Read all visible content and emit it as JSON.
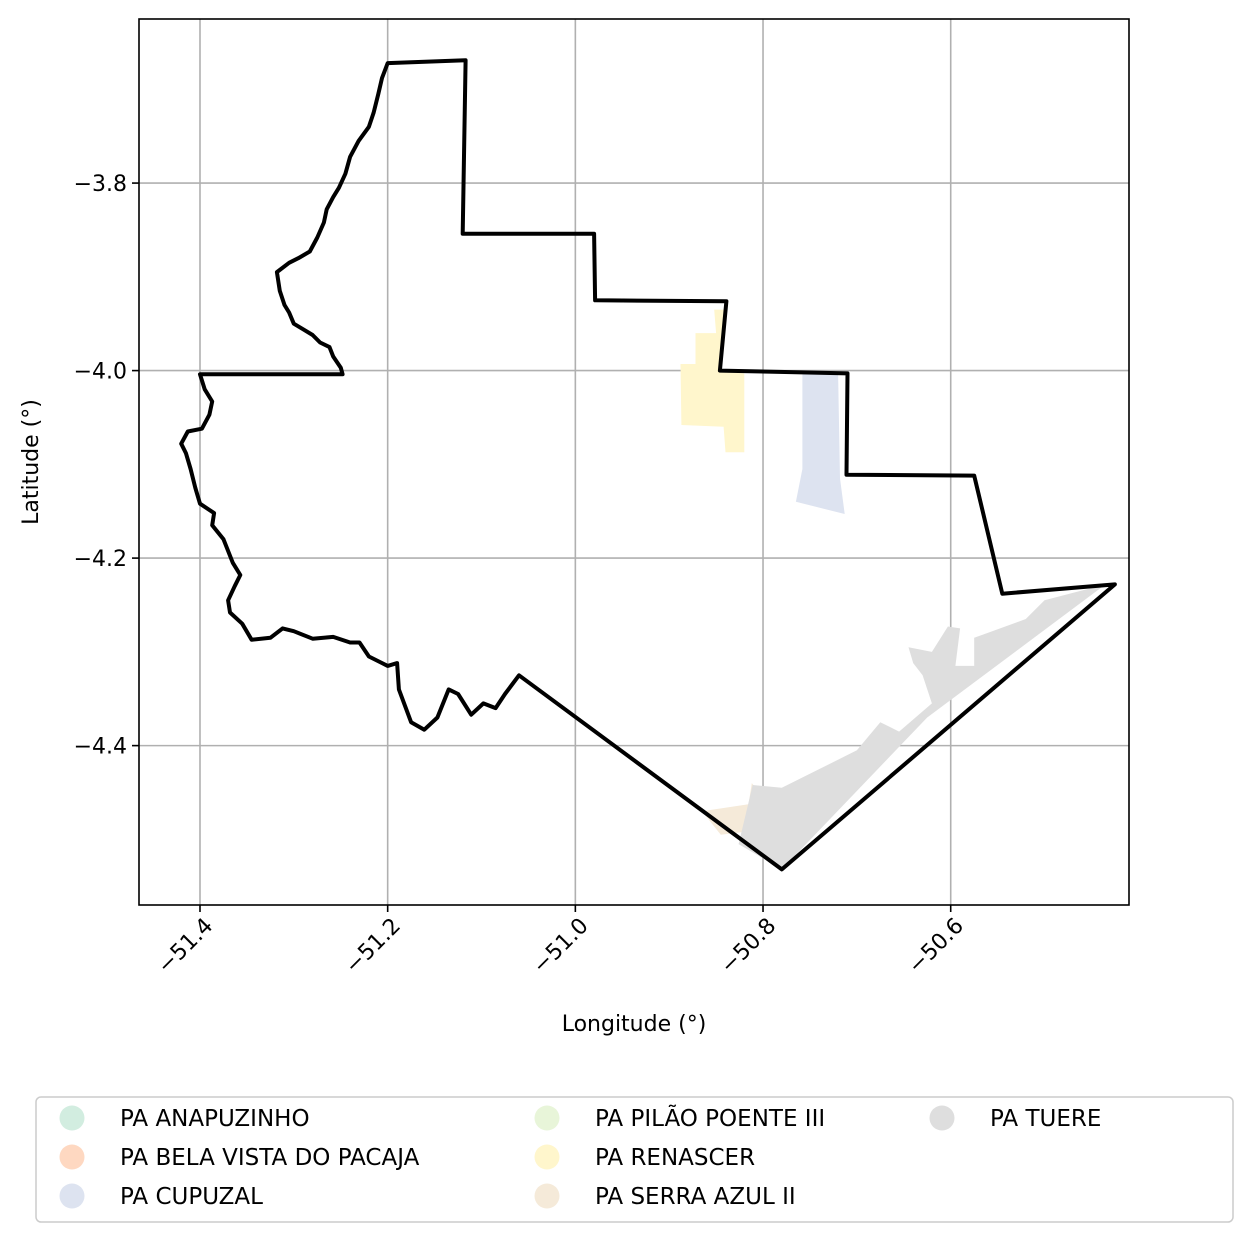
{
  "chart_data": {
    "type": "map",
    "xlabel": "Longitude (°)",
    "ylabel": "Latitude (°)",
    "xlim": [
      -51.465,
      -50.41
    ],
    "ylim": [
      -4.57,
      -3.625
    ],
    "xticks": [
      {
        "value": -51.4,
        "label": "−51.4"
      },
      {
        "value": -51.2,
        "label": "−51.2"
      },
      {
        "value": -51.0,
        "label": "−51.0"
      },
      {
        "value": -50.8,
        "label": "−50.8"
      },
      {
        "value": -50.6,
        "label": "−50.6"
      }
    ],
    "yticks": [
      {
        "value": -3.8,
        "label": "−3.8"
      },
      {
        "value": -4.0,
        "label": "−4.0"
      },
      {
        "value": -4.2,
        "label": "−4.2"
      },
      {
        "value": -4.4,
        "label": "−4.4"
      }
    ],
    "grid": true,
    "legend_placement": "bottom, below plot, 3 columns",
    "boundary": {
      "color": "#000000",
      "coords": [
        [
          -51.2,
          -3.672
        ],
        [
          -51.117,
          -3.669
        ],
        [
          -51.12,
          -3.854
        ],
        [
          -50.98,
          -3.854
        ],
        [
          -50.979,
          -3.925
        ],
        [
          -50.839,
          -3.926
        ],
        [
          -50.846,
          -4.0
        ],
        [
          -50.71,
          -4.003
        ],
        [
          -50.711,
          -4.111
        ],
        [
          -50.575,
          -4.112
        ],
        [
          -50.545,
          -4.238
        ],
        [
          -50.425,
          -4.228
        ],
        [
          -50.78,
          -4.532
        ],
        [
          -51.06,
          -4.325
        ],
        [
          -51.075,
          -4.345
        ],
        [
          -51.085,
          -4.36
        ],
        [
          -51.098,
          -4.355
        ],
        [
          -51.111,
          -4.367
        ],
        [
          -51.125,
          -4.345
        ],
        [
          -51.135,
          -4.34
        ],
        [
          -51.147,
          -4.37
        ],
        [
          -51.161,
          -4.383
        ],
        [
          -51.175,
          -4.375
        ],
        [
          -51.188,
          -4.34
        ],
        [
          -51.19,
          -4.312
        ],
        [
          -51.2,
          -4.315
        ],
        [
          -51.22,
          -4.305
        ],
        [
          -51.23,
          -4.29
        ],
        [
          -51.24,
          -4.29
        ],
        [
          -51.258,
          -4.284
        ],
        [
          -51.28,
          -4.286
        ],
        [
          -51.3,
          -4.278
        ],
        [
          -51.312,
          -4.275
        ],
        [
          -51.325,
          -4.285
        ],
        [
          -51.345,
          -4.287
        ],
        [
          -51.355,
          -4.27
        ],
        [
          -51.368,
          -4.258
        ],
        [
          -51.37,
          -4.245
        ],
        [
          -51.363,
          -4.23
        ],
        [
          -51.357,
          -4.218
        ],
        [
          -51.365,
          -4.205
        ],
        [
          -51.375,
          -4.18
        ],
        [
          -51.387,
          -4.165
        ],
        [
          -51.385,
          -4.152
        ],
        [
          -51.4,
          -4.142
        ],
        [
          -51.405,
          -4.125
        ],
        [
          -51.41,
          -4.105
        ],
        [
          -51.415,
          -4.088
        ],
        [
          -51.42,
          -4.078
        ],
        [
          -51.413,
          -4.065
        ],
        [
          -51.398,
          -4.062
        ],
        [
          -51.39,
          -4.047
        ],
        [
          -51.387,
          -4.033
        ],
        [
          -51.395,
          -4.02
        ],
        [
          -51.4,
          -4.004
        ],
        [
          -51.248,
          -4.004
        ],
        [
          -51.25,
          -3.997
        ],
        [
          -51.258,
          -3.985
        ],
        [
          -51.262,
          -3.975
        ],
        [
          -51.272,
          -3.97
        ],
        [
          -51.28,
          -3.962
        ],
        [
          -51.29,
          -3.956
        ],
        [
          -51.3,
          -3.95
        ],
        [
          -51.305,
          -3.938
        ],
        [
          -51.31,
          -3.93
        ],
        [
          -51.315,
          -3.915
        ],
        [
          -51.318,
          -3.895
        ],
        [
          -51.305,
          -3.885
        ],
        [
          -51.295,
          -3.88
        ],
        [
          -51.283,
          -3.873
        ],
        [
          -51.275,
          -3.858
        ],
        [
          -51.268,
          -3.842
        ],
        [
          -51.265,
          -3.828
        ],
        [
          -51.258,
          -3.815
        ],
        [
          -51.252,
          -3.805
        ],
        [
          -51.245,
          -3.79
        ],
        [
          -51.24,
          -3.772
        ],
        [
          -51.231,
          -3.755
        ],
        [
          -51.22,
          -3.74
        ],
        [
          -51.215,
          -3.725
        ],
        [
          -51.21,
          -3.705
        ],
        [
          -51.206,
          -3.688
        ],
        [
          -51.2,
          -3.672
        ]
      ]
    },
    "series": [
      {
        "name": "PA ANAPUZINHO",
        "color": "#d2ede0",
        "regions": []
      },
      {
        "name": "PA BELA VISTA DO PACAJA",
        "color": "#fed8c1",
        "regions": []
      },
      {
        "name": "PA CUPUZAL",
        "color": "#dde3f0",
        "regions": [
          [
            [
              -50.758,
              -4.003
            ],
            [
              -50.72,
              -4.003
            ],
            [
              -50.718,
              -4.115
            ],
            [
              -50.713,
              -4.153
            ],
            [
              -50.765,
              -4.14
            ],
            [
              -50.758,
              -4.105
            ]
          ]
        ]
      },
      {
        "name": "PA PILÃO POENTE III",
        "color": "#e8f5d9",
        "regions": []
      },
      {
        "name": "PA RENASCER",
        "color": "#fff6cc",
        "regions": [
          [
            [
              -50.852,
              -3.935
            ],
            [
              -50.838,
              -3.935
            ],
            [
              -50.846,
              -4.0
            ],
            [
              -50.82,
              -4.003
            ],
            [
              -50.82,
              -4.087
            ],
            [
              -50.84,
              -4.087
            ],
            [
              -50.842,
              -4.06
            ],
            [
              -50.887,
              -4.058
            ],
            [
              -50.888,
              -3.993
            ],
            [
              -50.872,
              -3.993
            ],
            [
              -50.872,
              -3.96
            ],
            [
              -50.85,
              -3.96
            ]
          ]
        ]
      },
      {
        "name": "PA SERRA AZUL II",
        "color": "#f5ead9",
        "regions": [
          [
            [
              -50.865,
              -4.47
            ],
            [
              -50.845,
              -4.495
            ],
            [
              -50.82,
              -4.492
            ],
            [
              -50.812,
              -4.44
            ],
            [
              -50.795,
              -4.46
            ],
            [
              -50.812,
              -4.462
            ]
          ]
        ]
      },
      {
        "name": "PA TUERE",
        "color": "#dedede",
        "regions": [
          [
            [
              -50.826,
              -4.505
            ],
            [
              -50.811,
              -4.442
            ],
            [
              -50.78,
              -4.445
            ],
            [
              -50.7,
              -4.405
            ],
            [
              -50.675,
              -4.375
            ],
            [
              -50.655,
              -4.385
            ],
            [
              -50.62,
              -4.355
            ],
            [
              -50.63,
              -4.325
            ],
            [
              -50.64,
              -4.312
            ],
            [
              -50.645,
              -4.295
            ],
            [
              -50.62,
              -4.3
            ],
            [
              -50.603,
              -4.273
            ],
            [
              -50.59,
              -4.275
            ],
            [
              -50.595,
              -4.315
            ],
            [
              -50.575,
              -4.315
            ],
            [
              -50.575,
              -4.285
            ],
            [
              -50.52,
              -4.265
            ],
            [
              -50.5,
              -4.245
            ],
            [
              -50.435,
              -4.228
            ],
            [
              -50.625,
              -4.37
            ],
            [
              -50.78,
              -4.532
            ]
          ]
        ]
      }
    ]
  }
}
